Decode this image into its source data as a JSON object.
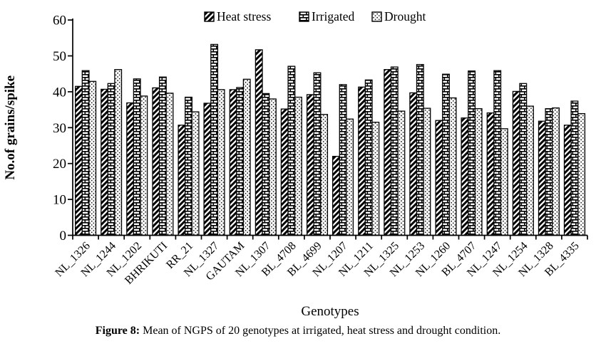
{
  "chart_data": {
    "type": "bar",
    "title": "",
    "xlabel": "Genotypes",
    "ylabel": "No.of grains/spike",
    "ylim": [
      0,
      60
    ],
    "ytick_step": 10,
    "yticks": [
      0,
      10,
      20,
      30,
      40,
      50,
      60
    ],
    "grid": false,
    "legend_position": "top-center",
    "categories": [
      "NL_1326",
      "NL_1244",
      "NL_1202",
      "BHRIKUTI",
      "RR_21",
      "NL_1327",
      "GAUTAM",
      "NL_1307",
      "BL_4708",
      "BL_4699",
      "NL_1207",
      "NL_1211",
      "NL_1325",
      "NL_1253",
      "NL_1260",
      "BL_4707",
      "NL_1247",
      "NL_1254",
      "NL_1328",
      "BL_4335"
    ],
    "series": [
      {
        "name": "Heat stress",
        "hatch": "diagonal",
        "values": [
          41.5,
          40.7,
          36.9,
          41.1,
          30.7,
          36.8,
          40.6,
          51.7,
          35.2,
          39.2,
          22.0,
          41.3,
          46.2,
          39.7,
          32.0,
          32.7,
          34.1,
          40.1,
          31.8,
          30.7
        ]
      },
      {
        "name": "Irrigated",
        "hatch": "brick",
        "values": [
          45.9,
          42.3,
          43.6,
          44.1,
          38.5,
          53.2,
          41.2,
          39.5,
          47.1,
          45.3,
          42.0,
          43.3,
          46.9,
          47.6,
          44.9,
          45.8,
          45.9,
          42.3,
          35.3,
          37.4
        ]
      },
      {
        "name": "Drought",
        "hatch": "dots",
        "values": [
          42.9,
          46.2,
          38.8,
          39.6,
          34.4,
          40.6,
          43.5,
          38.0,
          38.5,
          33.7,
          32.4,
          31.5,
          34.6,
          35.4,
          38.3,
          35.3,
          29.7,
          36.0,
          35.5,
          33.9
        ]
      }
    ]
  },
  "caption": {
    "label": "Figure 8:",
    "text": "Mean of NGPS of 20 genotypes at irrigated, heat stress and drought condition."
  },
  "colors": {
    "ink": "#000000",
    "paper": "#ffffff"
  }
}
